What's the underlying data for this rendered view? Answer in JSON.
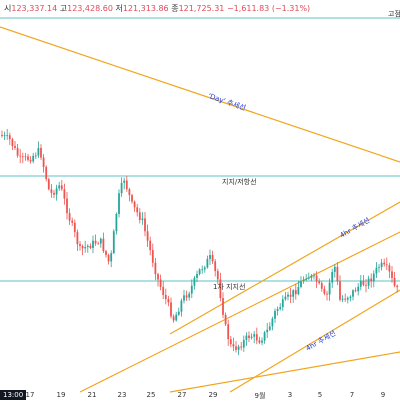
{
  "header": {
    "open_label": "시",
    "open": "123,337.14",
    "high_label": "고",
    "high": "123,428.60",
    "low_label": "저",
    "low": "121,313.86",
    "close_label": "종",
    "close": "121,725.31",
    "change": "−1,611.83",
    "change_pct": "(−1.31%)"
  },
  "horizontal_levels": {
    "top_label": "고점",
    "mid_label": "지지/저항선",
    "low_label": "1차 지지선"
  },
  "trendlines": {
    "day_label": "'Day' 추세선",
    "four_h_upper_label": "4hr 추세선",
    "four_h_lower_label": "4hr 추세선"
  },
  "x_axis": {
    "time_badge": "13:00",
    "ticks": [
      "17",
      "19",
      "21",
      "23",
      "25",
      "27",
      "29",
      "9월",
      "3",
      "5",
      "7",
      "9"
    ]
  },
  "colors": {
    "up": "#26a69a",
    "down": "#ef5350",
    "trend": "#f0a61f",
    "level": "#5dc2c8"
  }
}
